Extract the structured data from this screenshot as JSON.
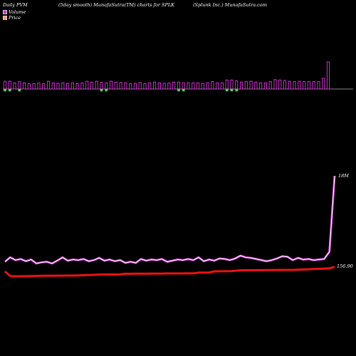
{
  "header": {
    "left": "Daily PVM",
    "middle": "(5day smooth) MunafaSutra(TM) charts for SPLK",
    "right": "(Splunk Inc.) MunafaSutra.com"
  },
  "legend": {
    "volume_label": "Volume",
    "price_label": "Price",
    "volume_color": "#cc33cc",
    "price_color": "#ff9966"
  },
  "chart_data": {
    "type": "line",
    "series": [
      {
        "name": "Volume",
        "color": "#cc44cc",
        "end_label": "18M",
        "values": [
          2.5,
          3.3,
          2.8,
          3.0,
          2.6,
          2.9,
          2.2,
          2.4,
          2.5,
          2.2,
          2.7,
          3.3,
          2.7,
          2.9,
          2.8,
          3.0,
          2.6,
          2.8,
          3.2,
          2.7,
          2.9,
          2.6,
          2.8,
          2.3,
          2.5,
          2.3,
          3.0,
          2.7,
          2.9,
          2.8,
          3.0,
          2.5,
          2.7,
          2.9,
          2.8,
          3.0,
          2.8,
          3.3,
          2.6,
          2.9,
          2.7,
          3.1,
          3.0,
          2.8,
          3.1,
          3.6,
          3.3,
          3.2,
          3.0,
          2.8,
          2.6,
          2.8,
          3.1,
          3.5,
          3.4,
          2.8,
          3.2,
          2.9,
          3.0,
          2.8,
          2.9,
          3.0,
          4.3,
          18
        ]
      },
      {
        "name": "Price",
        "color": "#ee1111",
        "end_label": "156.90",
        "values": [
          152.6,
          148.2,
          148.0,
          148.0,
          148.1,
          148.2,
          148.3,
          148.4,
          148.5,
          148.5,
          148.6,
          148.6,
          148.7,
          148.7,
          148.8,
          149.0,
          149.2,
          149.4,
          149.6,
          149.6,
          149.7,
          149.7,
          149.8,
          150.4,
          150.4,
          150.5,
          150.5,
          150.5,
          150.6,
          150.6,
          150.6,
          150.7,
          150.7,
          150.7,
          150.7,
          150.8,
          150.8,
          151.5,
          151.5,
          151.6,
          152.7,
          152.8,
          152.9,
          152.9,
          153.3,
          153.7,
          153.8,
          153.8,
          153.9,
          153.9,
          154.0,
          154.0,
          154.1,
          154.1,
          154.1,
          154.1,
          154.3,
          154.5,
          154.7,
          155.0,
          155.2,
          155.4,
          155.7,
          156.9
        ]
      }
    ],
    "volume_bars": [
      0.95,
      0.95,
      0.75,
      0.9,
      0.75,
      0.65,
      0.65,
      0.75,
      0.65,
      0.95,
      0.75,
      0.7,
      0.75,
      0.7,
      0.75,
      0.65,
      0.75,
      0.95,
      0.85,
      0.95,
      0.8,
      0.75,
      0.95,
      0.85,
      0.8,
      0.75,
      0.65,
      0.7,
      0.8,
      0.65,
      0.75,
      0.85,
      0.75,
      0.7,
      0.75,
      0.85,
      0.85,
      0.75,
      0.75,
      0.75,
      0.75,
      0.7,
      0.75,
      0.9,
      0.75,
      0.75,
      1.1,
      1.1,
      1.0,
      0.85,
      0.9,
      0.95,
      0.85,
      0.75,
      0.75,
      0.9,
      1.15,
      1.1,
      1.05,
      0.95,
      0.9,
      0.95,
      0.9,
      0.9,
      0.9,
      0.9,
      1.3,
      3.3
    ],
    "volume_bar_colors": [
      "g",
      "g",
      "m",
      "g",
      "m",
      "m",
      "m",
      "m",
      "m",
      "m",
      "m",
      "m",
      "m",
      "m",
      "m",
      "m",
      "m",
      "m",
      "m",
      "m",
      "g",
      "g",
      "m",
      "m",
      "m",
      "m",
      "m",
      "m",
      "m",
      "m",
      "m",
      "m",
      "m",
      "m",
      "m",
      "m",
      "g",
      "g",
      "m",
      "m",
      "m",
      "m",
      "m",
      "m",
      "m",
      "m",
      "g",
      "g",
      "g",
      "m",
      "m",
      "m",
      "m",
      "m",
      "m",
      "m",
      "m",
      "m",
      "m",
      "m",
      "m",
      "m",
      "m",
      "m",
      "m",
      "m",
      "m",
      "m"
    ]
  }
}
